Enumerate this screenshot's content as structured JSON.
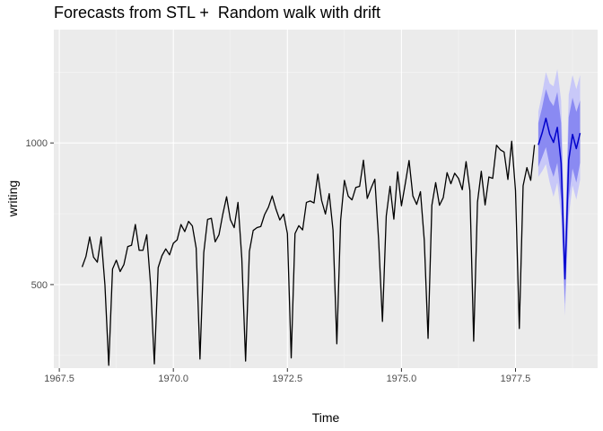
{
  "chart_data": {
    "type": "line",
    "title": "Forecasts from STL +  Random walk with drift",
    "xlabel": "Time",
    "ylabel": "writing",
    "xlim": [
      1967.38,
      1979.3
    ],
    "ylim": [
      205,
      1400
    ],
    "x_ticks": [
      1967.5,
      1970.0,
      1972.5,
      1975.0,
      1977.5
    ],
    "x_tick_labels": [
      "1967.5",
      "1970.0",
      "1972.5",
      "1975.0",
      "1977.5"
    ],
    "y_ticks": [
      500,
      1000
    ],
    "y_tick_labels": [
      "500",
      "1000"
    ],
    "grid": true,
    "legend": "none",
    "colors": {
      "panel": "#ebebeb",
      "grid_major": "#ffffff",
      "history": "#000000",
      "forecast": "#0000cc",
      "band_80": "#8a8af2",
      "band_95": "#c8c8f8"
    },
    "series": [
      {
        "start": 1968.0,
        "frequency": 12,
        "values": [
          562,
          599,
          668,
          597,
          579,
          668,
          499,
          215,
          555,
          586,
          546,
          571,
          634,
          639,
          712,
          621,
          621,
          676,
          501,
          220,
          560,
          602,
          626,
          605,
          646,
          658,
          712,
          687,
          723,
          707,
          629,
          237,
          613,
          730,
          734,
          651,
          676,
          748,
          810,
          729,
          701,
          790,
          594,
          230,
          617,
          691,
          701,
          705,
          747,
          773,
          813,
          766,
          728,
          749,
          680,
          241,
          680,
          708,
          693,
          790,
          795,
          788,
          890,
          797,
          749,
          821,
          692,
          291,
          727,
          868,
          812,
          799,
          843,
          847,
          939,
          804,
          840,
          872,
          656,
          370,
          742,
          847,
          731,
          898,
          778,
          856,
          938,
          813,
          783,
          828,
          657,
          310,
          780,
          860,
          780,
          807,
          895,
          856,
          893,
          875,
          835,
          934,
          832,
          300,
          791,
          900,
          781,
          880,
          875,
          992,
          976,
          968,
          871,
          1006,
          832,
          345,
          849,
          913,
          868,
          993
        ]
      },
      {
        "forecast_start": 1978.0,
        "frequency": 12,
        "point": [
          993,
          1035,
          1087,
          1031,
          1002,
          1055,
          930,
          520,
          940,
          1030,
          980,
          1035
        ],
        "lo80": [
          915,
          950,
          985,
          920,
          880,
          930,
          800,
          430,
          800,
          910,
          860,
          930
        ],
        "hi80": [
          1070,
          1125,
          1190,
          1150,
          1130,
          1180,
          1070,
          610,
          1090,
          1160,
          1110,
          1150
        ],
        "lo95": [
          880,
          900,
          925,
          860,
          810,
          860,
          740,
          390,
          740,
          850,
          800,
          870
        ],
        "hi95": [
          1110,
          1175,
          1250,
          1210,
          1200,
          1260,
          1150,
          650,
          1170,
          1240,
          1190,
          1240
        ]
      }
    ]
  }
}
